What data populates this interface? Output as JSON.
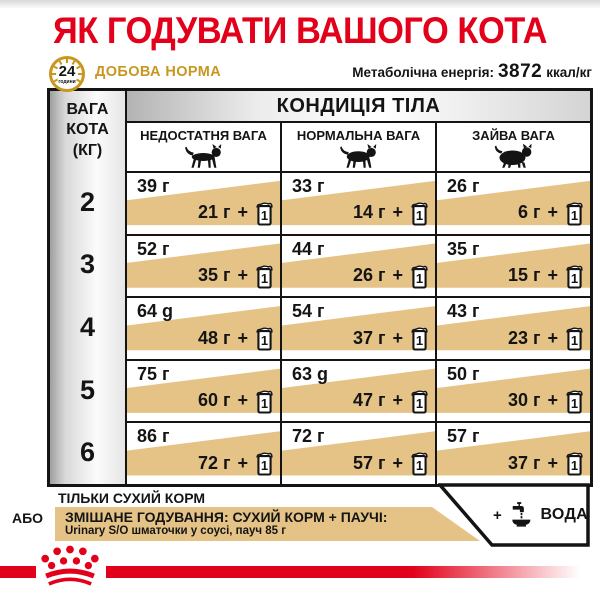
{
  "title": "ЯК ГОДУВАТИ ВАШОГО КОТА",
  "subheader": {
    "clock_value": "24",
    "clock_unit": "години",
    "daily_norm_label": "ДОБОВА НОРМА",
    "energy_label": "Метаболічна енергія:",
    "energy_value": "3872",
    "energy_unit": "ккал/кг"
  },
  "table": {
    "weight_header": "ВАГА\nКОТА\n(КГ)",
    "condition_header": "КОНДИЦІЯ ТІЛА",
    "columns": [
      {
        "label": "НЕДОСТАТНЯ ВАГА",
        "icon": "thin-cat-icon"
      },
      {
        "label": "НОРМАЛЬНА ВАГА",
        "icon": "normal-cat-icon"
      },
      {
        "label": "ЗАЙВА ВАГА",
        "icon": "fat-cat-icon"
      }
    ],
    "plus_sign": "+",
    "pouch_count": "1",
    "rows": [
      {
        "weight": "2",
        "cells": [
          {
            "dry": "39 г",
            "mixed": "21 г"
          },
          {
            "dry": "33 г",
            "mixed": "14 г"
          },
          {
            "dry": "26 г",
            "mixed": "6 г"
          }
        ]
      },
      {
        "weight": "3",
        "cells": [
          {
            "dry": "52 г",
            "mixed": "35 г"
          },
          {
            "dry": "44 г",
            "mixed": "26 г"
          },
          {
            "dry": "35 г",
            "mixed": "15 г"
          }
        ]
      },
      {
        "weight": "4",
        "cells": [
          {
            "dry": "64 g",
            "mixed": "48 г"
          },
          {
            "dry": "54 г",
            "mixed": "37 г"
          },
          {
            "dry": "43 г",
            "mixed": "23 г"
          }
        ]
      },
      {
        "weight": "5",
        "cells": [
          {
            "dry": "75 г",
            "mixed": "60 г"
          },
          {
            "dry": "63 g",
            "mixed": "47 г"
          },
          {
            "dry": "50 г",
            "mixed": "30 г"
          }
        ]
      },
      {
        "weight": "6",
        "cells": [
          {
            "dry": "86 г",
            "mixed": "72 г"
          },
          {
            "dry": "72 г",
            "mixed": "57 г"
          },
          {
            "dry": "57 г",
            "mixed": "37 г"
          }
        ]
      }
    ]
  },
  "legend": {
    "dry_only": "ТІЛЬКИ СУХИЙ КОРМ",
    "or_label": "АБО",
    "mixed_title": "ЗМІШАНЕ ГОДУВАННЯ: СУХИЙ КОРМ + ПАУЧІ:",
    "mixed_subtitle": "Urinary S/O шматочки у соусі, пауч 85 г",
    "water_plus": "+",
    "water_label": "ВОДА"
  },
  "colors": {
    "brand_red": "#e2001a",
    "gold": "#c7971f",
    "tan": "#e5c386"
  }
}
